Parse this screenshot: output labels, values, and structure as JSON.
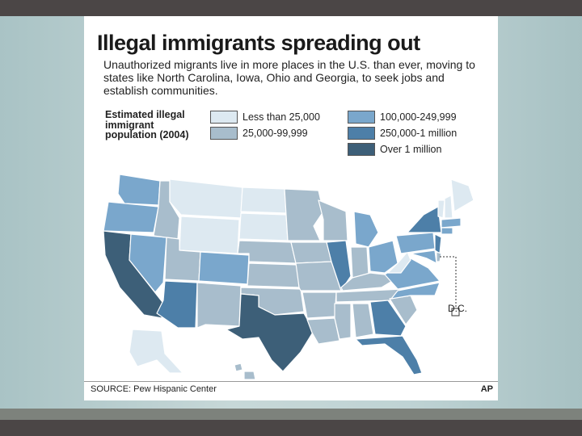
{
  "header": {
    "title": "Illegal immigrants spreading out",
    "subtitle": "Unauthorized migrants live in more places in the U.S. than ever, moving to states like North Carolina, Iowa, Ohio and Georgia, to seek jobs and establish communities."
  },
  "legend": {
    "heading_lines": [
      "Estimated illegal",
      "immigrant",
      "population (2004)"
    ],
    "items": [
      {
        "label": "Less than 25,000",
        "color": "#dde9f1"
      },
      {
        "label": "25,000-99,999",
        "color": "#a8bdcc"
      },
      {
        "label": "100,000-249,999",
        "color": "#7aa7cc"
      },
      {
        "label": "250,000-1 million",
        "color": "#4d7fa8"
      },
      {
        "label": "Over 1 million",
        "color": "#3d5f78"
      }
    ]
  },
  "map": {
    "dc_label": "D.C."
  },
  "footer": {
    "source": "SOURCE: Pew Hispanic Center",
    "credit": "AP"
  }
}
